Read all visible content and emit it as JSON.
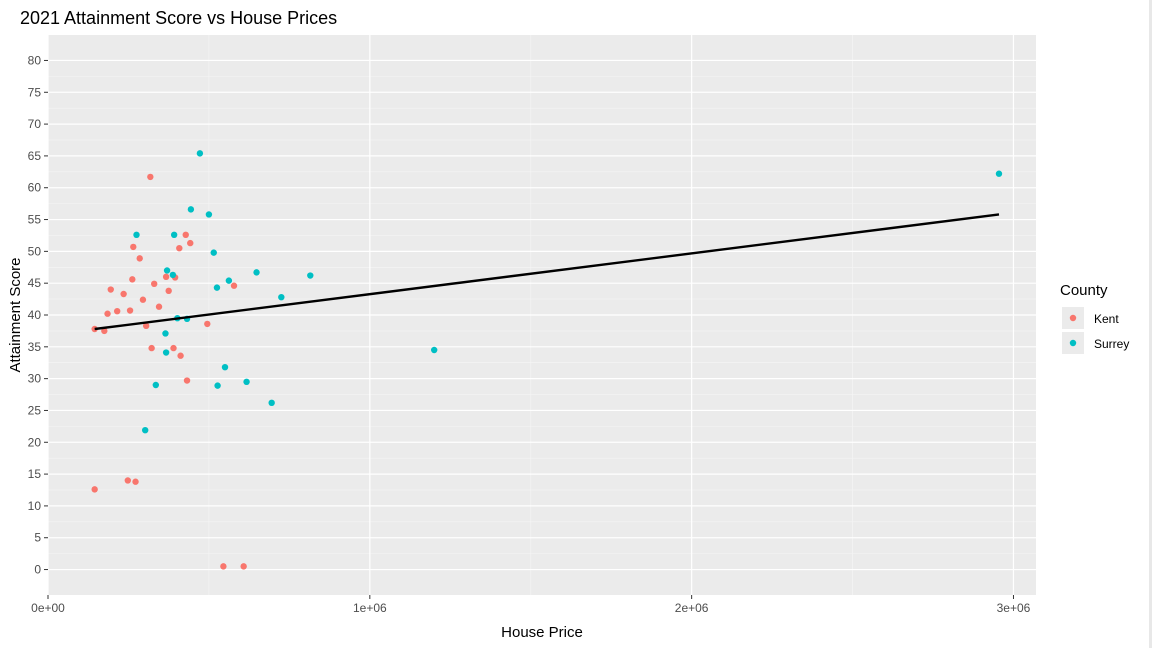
{
  "chart_data": {
    "type": "scatter",
    "title": "2021 Attainment Score vs House Prices",
    "xlabel": "House Price",
    "ylabel": "Attainment Score",
    "xlim": [
      0,
      3070000
    ],
    "ylim": [
      -4,
      84
    ],
    "x_ticks": [
      {
        "value": 0,
        "label": "0e+00"
      },
      {
        "value": 1000000,
        "label": "1e+06"
      },
      {
        "value": 2000000,
        "label": "2e+06"
      },
      {
        "value": 3000000,
        "label": "3e+06"
      }
    ],
    "y_ticks": [
      0,
      5,
      10,
      15,
      20,
      25,
      30,
      35,
      40,
      45,
      50,
      55,
      60,
      65,
      70,
      75,
      80
    ],
    "grid": true,
    "background": "#ebebeb",
    "legend": {
      "title": "County",
      "position": "right"
    },
    "series": [
      {
        "name": "Kent",
        "color": "#f8766d",
        "points": [
          [
            145000,
            12.6
          ],
          [
            145000,
            37.8
          ],
          [
            175000,
            37.5
          ],
          [
            185000,
            40.2
          ],
          [
            195000,
            44.0
          ],
          [
            215000,
            40.6
          ],
          [
            235000,
            43.3
          ],
          [
            248000,
            14.0
          ],
          [
            255000,
            40.7
          ],
          [
            262000,
            45.6
          ],
          [
            265000,
            50.7
          ],
          [
            272000,
            13.8
          ],
          [
            285000,
            48.9
          ],
          [
            295000,
            42.4
          ],
          [
            305000,
            38.3
          ],
          [
            318000,
            61.7
          ],
          [
            322000,
            34.8
          ],
          [
            330000,
            44.9
          ],
          [
            345000,
            41.3
          ],
          [
            367000,
            46.0
          ],
          [
            375000,
            43.8
          ],
          [
            390000,
            34.8
          ],
          [
            395000,
            45.9
          ],
          [
            408000,
            50.5
          ],
          [
            412000,
            33.6
          ],
          [
            428000,
            52.6
          ],
          [
            432000,
            29.7
          ],
          [
            442000,
            51.3
          ],
          [
            495000,
            38.6
          ],
          [
            545000,
            0.5
          ],
          [
            578000,
            44.6
          ],
          [
            608000,
            0.5
          ]
        ]
      },
      {
        "name": "Surrey",
        "color": "#00bfc4",
        "points": [
          [
            275000,
            52.6
          ],
          [
            302000,
            21.9
          ],
          [
            335000,
            29.0
          ],
          [
            365000,
            37.1
          ],
          [
            367000,
            34.1
          ],
          [
            370000,
            47.0
          ],
          [
            388000,
            46.3
          ],
          [
            392000,
            52.6
          ],
          [
            402000,
            39.5
          ],
          [
            432000,
            39.4
          ],
          [
            444000,
            56.6
          ],
          [
            472000,
            65.4
          ],
          [
            500000,
            55.8
          ],
          [
            515000,
            49.8
          ],
          [
            525000,
            44.3
          ],
          [
            527000,
            28.9
          ],
          [
            550000,
            31.8
          ],
          [
            562000,
            45.4
          ],
          [
            617000,
            29.5
          ],
          [
            648000,
            46.7
          ],
          [
            695000,
            26.2
          ],
          [
            725000,
            42.8
          ],
          [
            815000,
            46.2
          ],
          [
            1200000,
            34.5
          ],
          [
            2955000,
            62.2
          ]
        ]
      }
    ],
    "trend_line": {
      "x": [
        145000,
        2955000
      ],
      "y": [
        37.8,
        55.8
      ],
      "color": "#000000"
    }
  }
}
